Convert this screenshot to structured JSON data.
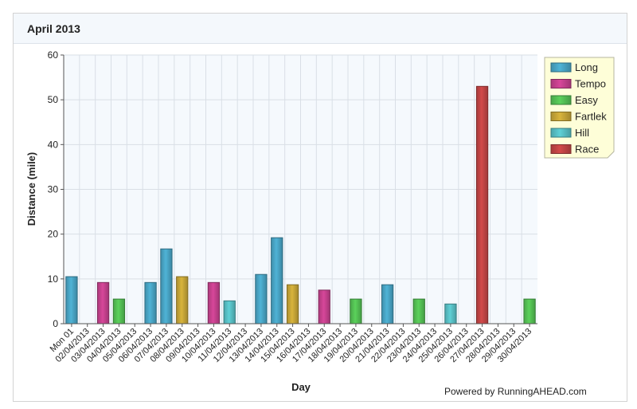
{
  "panel": {
    "title": "April 2013"
  },
  "footer": {
    "powered_by": "Powered by RunningAHEAD.com"
  },
  "colors": {
    "Long": "#4fb3d6",
    "Tempo": "#d7479a",
    "Easy": "#5bd15b",
    "Fartlek": "#d8b43c",
    "Hill": "#5fd0d6",
    "Race": "#d24a4a"
  },
  "chart_data": {
    "type": "bar",
    "xlabel": "Day",
    "ylabel": "Distance (mile)",
    "ylim": [
      0,
      60
    ],
    "yticks": [
      0,
      10,
      20,
      30,
      40,
      50,
      60
    ],
    "grid": true,
    "legend_position": "top-right",
    "categories": [
      "Mon 01",
      "02/04/2013",
      "03/04/2013",
      "04/04/2013",
      "05/04/2013",
      "06/04/2013",
      "07/04/2013",
      "08/04/2013",
      "09/04/2013",
      "10/04/2013",
      "11/04/2013",
      "12/04/2013",
      "13/04/2013",
      "14/04/2013",
      "15/04/2013",
      "16/04/2013",
      "17/04/2013",
      "18/04/2013",
      "19/04/2013",
      "20/04/2013",
      "21/04/2013",
      "22/04/2013",
      "23/04/2013",
      "24/04/2013",
      "25/04/2013",
      "26/04/2013",
      "27/04/2013",
      "28/04/2013",
      "29/04/2013",
      "30/04/2013"
    ],
    "legend": [
      "Long",
      "Tempo",
      "Easy",
      "Fartlek",
      "Hill",
      "Race"
    ],
    "points": [
      {
        "category": "Mon 01",
        "type": "Long",
        "value": 10.5
      },
      {
        "category": "03/04/2013",
        "type": "Tempo",
        "value": 9.2
      },
      {
        "category": "04/04/2013",
        "type": "Easy",
        "value": 5.5
      },
      {
        "category": "06/04/2013",
        "type": "Long",
        "value": 9.2
      },
      {
        "category": "07/04/2013",
        "type": "Long",
        "value": 16.7
      },
      {
        "category": "08/04/2013",
        "type": "Fartlek",
        "value": 10.5
      },
      {
        "category": "10/04/2013",
        "type": "Tempo",
        "value": 9.2
      },
      {
        "category": "11/04/2013",
        "type": "Hill",
        "value": 5.1
      },
      {
        "category": "13/04/2013",
        "type": "Long",
        "value": 11.0
      },
      {
        "category": "14/04/2013",
        "type": "Long",
        "value": 19.2
      },
      {
        "category": "15/04/2013",
        "type": "Fartlek",
        "value": 8.7
      },
      {
        "category": "17/04/2013",
        "type": "Tempo",
        "value": 7.5
      },
      {
        "category": "19/04/2013",
        "type": "Easy",
        "value": 5.5
      },
      {
        "category": "21/04/2013",
        "type": "Long",
        "value": 8.7
      },
      {
        "category": "23/04/2013",
        "type": "Easy",
        "value": 5.5
      },
      {
        "category": "25/04/2013",
        "type": "Hill",
        "value": 4.4
      },
      {
        "category": "27/04/2013",
        "type": "Race",
        "value": 53.0
      },
      {
        "category": "30/04/2013",
        "type": "Easy",
        "value": 5.5
      }
    ]
  }
}
